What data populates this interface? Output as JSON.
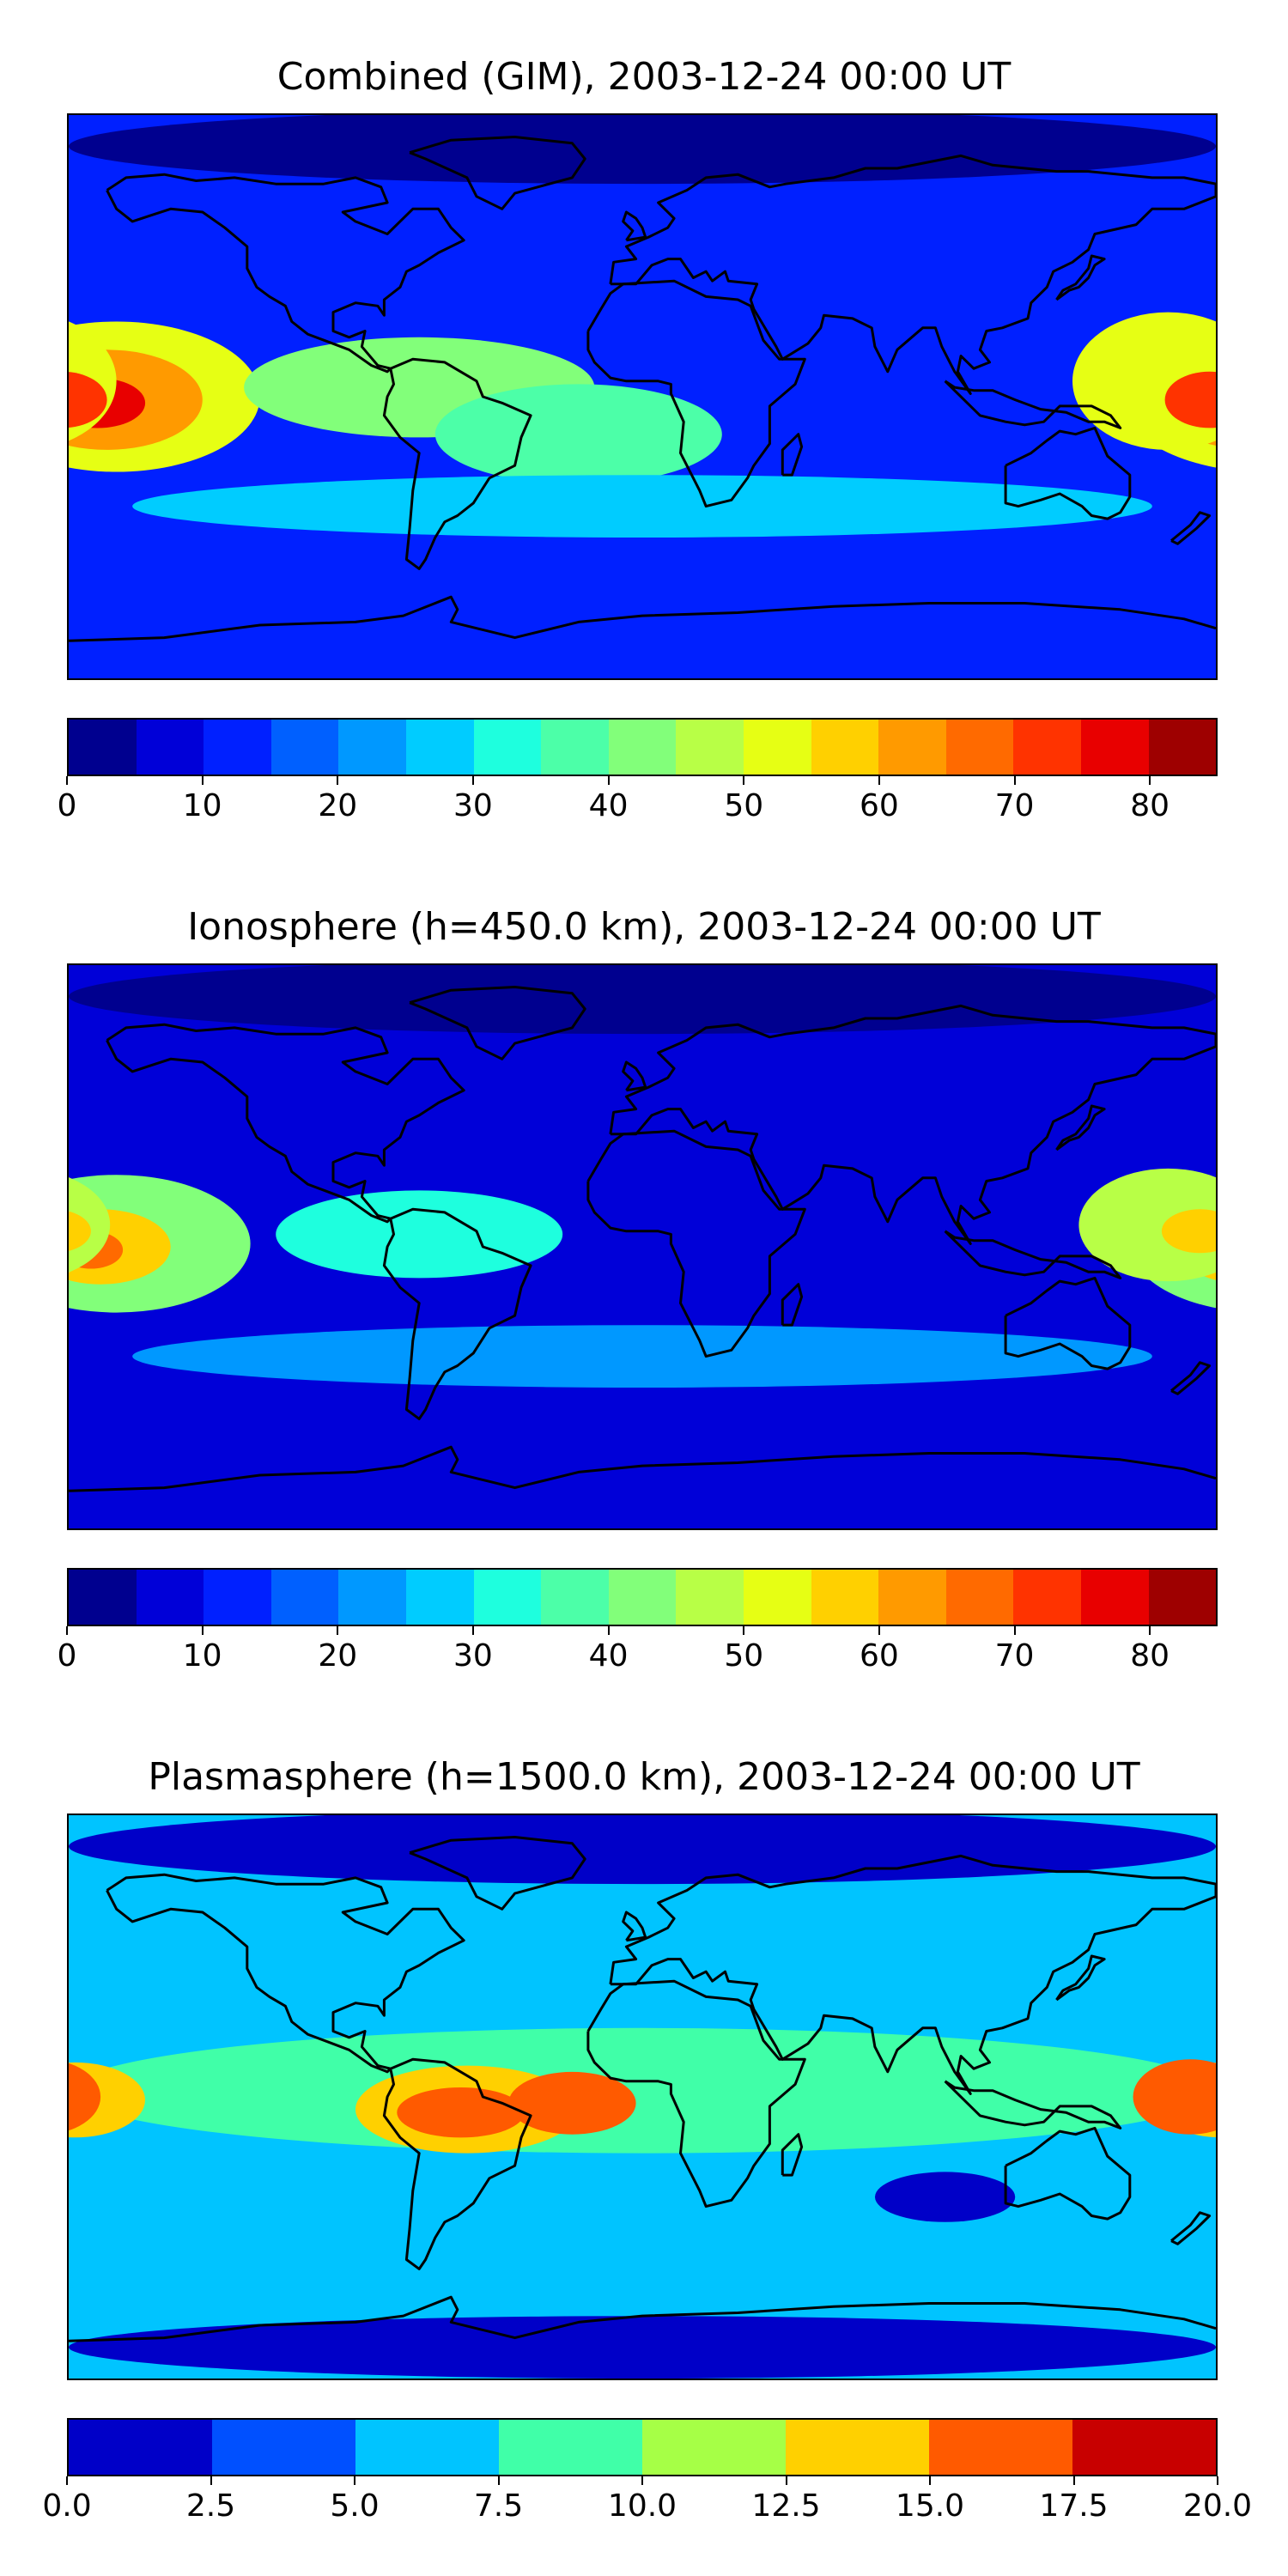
{
  "chart_data": [
    {
      "type": "heatmap",
      "title": "Combined (GIM), 2003-12-24 00:00 UT",
      "xlabel": "",
      "ylabel": "",
      "colorbar": {
        "levels": [
          0,
          5,
          10,
          15,
          20,
          25,
          30,
          35,
          40,
          45,
          50,
          55,
          60,
          65,
          70,
          75,
          80,
          85
        ],
        "colors": [
          "#00008f",
          "#0000d8",
          "#0020ff",
          "#0060ff",
          "#0098ff",
          "#00ccff",
          "#1effde",
          "#4cffa8",
          "#82ff7a",
          "#b8ff46",
          "#e6ff14",
          "#ffd000",
          "#ff9a00",
          "#ff6a00",
          "#ff3300",
          "#e80000",
          "#9e0000"
        ],
        "tick_values": [
          0,
          10,
          20,
          30,
          40,
          50,
          60,
          70,
          80
        ],
        "tick_labels": [
          "0",
          "10",
          "20",
          "30",
          "40",
          "50",
          "60",
          "70",
          "80"
        ]
      },
      "background_value": 12,
      "features": [
        {
          "desc": "pacific anomaly",
          "lon": -165,
          "lat": 0,
          "rlon": 45,
          "rlat": 24,
          "value": 50
        },
        {
          "desc": "pacific anomaly",
          "lon": -168,
          "lat": -1,
          "rlon": 30,
          "rlat": 16,
          "value": 60
        },
        {
          "desc": "pacific anomaly core",
          "lon": -171,
          "lat": -2,
          "rlon": 15,
          "rlat": 8,
          "value": 75
        },
        {
          "desc": "south america band",
          "lon": -70,
          "lat": 3,
          "rlon": 55,
          "rlat": 16,
          "value": 40
        },
        {
          "desc": "south atlantic",
          "lon": -20,
          "lat": -12,
          "rlon": 45,
          "rlat": 16,
          "value": 35
        },
        {
          "desc": "southern ocean",
          "lon": 0,
          "lat": -35,
          "rlon": 160,
          "rlat": 10,
          "value": 27
        },
        {
          "desc": "west pacific",
          "lon": 165,
          "lat": 5,
          "rlon": 30,
          "rlat": 22,
          "value": 50
        },
        {
          "desc": "west pacific core",
          "lon": 178,
          "lat": -1,
          "rlon": 14,
          "rlat": 9,
          "value": 70
        },
        {
          "desc": "arctic",
          "lon": 0,
          "lat": 80,
          "rlon": 180,
          "rlat": 12,
          "value": 3
        }
      ]
    },
    {
      "type": "heatmap",
      "title": "Ionosphere  (h=450.0 km), 2003-12-24 00:00 UT",
      "xlabel": "",
      "ylabel": "",
      "colorbar": {
        "levels": [
          0,
          5,
          10,
          15,
          20,
          25,
          30,
          35,
          40,
          45,
          50,
          55,
          60,
          65,
          70,
          75,
          80,
          85
        ],
        "colors": [
          "#00008f",
          "#0000d8",
          "#0020ff",
          "#0060ff",
          "#0098ff",
          "#00ccff",
          "#1effde",
          "#4cffa8",
          "#82ff7a",
          "#b8ff46",
          "#e6ff14",
          "#ffd000",
          "#ff9a00",
          "#ff6a00",
          "#ff3300",
          "#e80000",
          "#9e0000"
        ],
        "tick_values": [
          0,
          10,
          20,
          30,
          40,
          50,
          60,
          70,
          80
        ],
        "tick_labels": [
          "0",
          "10",
          "20",
          "30",
          "40",
          "50",
          "60",
          "70",
          "80"
        ]
      },
      "background_value": 7,
      "features": [
        {
          "desc": "pacific anomaly",
          "lon": -165,
          "lat": 1,
          "rlon": 42,
          "rlat": 22,
          "value": 42
        },
        {
          "desc": "pacific anomaly",
          "lon": -170,
          "lat": 0,
          "rlon": 22,
          "rlat": 12,
          "value": 55
        },
        {
          "desc": "pacific anomaly core",
          "lon": -173,
          "lat": -1,
          "rlon": 10,
          "rlat": 6,
          "value": 65
        },
        {
          "desc": "south america band",
          "lon": -70,
          "lat": 4,
          "rlon": 45,
          "rlat": 14,
          "value": 30
        },
        {
          "desc": "southern ocean",
          "lon": 0,
          "lat": -35,
          "rlon": 160,
          "rlat": 10,
          "value": 22
        },
        {
          "desc": "west pacific",
          "lon": 165,
          "lat": 7,
          "rlon": 28,
          "rlat": 18,
          "value": 48
        },
        {
          "desc": "west pacific core",
          "lon": 175,
          "lat": 5,
          "rlon": 12,
          "rlat": 7,
          "value": 58
        },
        {
          "desc": "arctic",
          "lon": 0,
          "lat": 80,
          "rlon": 180,
          "rlat": 12,
          "value": 2
        }
      ]
    },
    {
      "type": "heatmap",
      "title": "Plasmasphere (h=1500.0 km), 2003-12-24 00:00 UT",
      "xlabel": "",
      "ylabel": "",
      "colorbar": {
        "levels": [
          0,
          2.5,
          5,
          7.5,
          10,
          12.5,
          15,
          17.5,
          20
        ],
        "colors": [
          "#0000c8",
          "#0050ff",
          "#00c4ff",
          "#40ffa8",
          "#a6ff46",
          "#ffd000",
          "#ff5a00",
          "#c80000"
        ],
        "tick_values": [
          0,
          2.5,
          5,
          7.5,
          10,
          12.5,
          15,
          17.5,
          20
        ],
        "tick_labels": [
          "0.0",
          "2.5",
          "5.0",
          "7.5",
          "10.0",
          "12.5",
          "15.0",
          "17.5",
          "20.0"
        ]
      },
      "background_value": 6.2,
      "features": [
        {
          "desc": "equatorial band",
          "lon": 0,
          "lat": 2,
          "rlon": 180,
          "rlat": 20,
          "value": 8.8
        },
        {
          "desc": "south america peak",
          "lon": -55,
          "lat": -4,
          "rlon": 35,
          "rlat": 14,
          "value": 13.5
        },
        {
          "desc": "south america peak core",
          "lon": -57,
          "lat": -5,
          "rlon": 20,
          "rlat": 8,
          "value": 15.5
        },
        {
          "desc": "atlantic peak",
          "lon": -22,
          "lat": -2,
          "rlon": 20,
          "rlat": 10,
          "value": 15
        },
        {
          "desc": "pacific west edge",
          "lon": -178,
          "lat": -1,
          "rlon": 22,
          "rlat": 12,
          "value": 13.5
        },
        {
          "desc": "west pacific peak",
          "lon": 172,
          "lat": 0,
          "rlon": 18,
          "rlat": 12,
          "value": 17
        },
        {
          "desc": "indian ocean low",
          "lon": 95,
          "lat": -32,
          "rlon": 22,
          "rlat": 8,
          "value": 1.5
        },
        {
          "desc": "arctic",
          "lon": 0,
          "lat": 80,
          "rlon": 180,
          "rlat": 12,
          "value": 1.5
        },
        {
          "desc": "antarctic",
          "lon": 0,
          "lat": -80,
          "rlon": 180,
          "rlat": 10,
          "value": 2
        }
      ]
    }
  ]
}
